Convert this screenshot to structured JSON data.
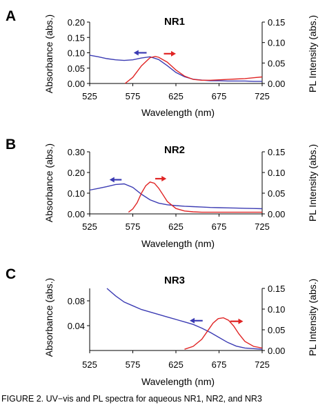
{
  "chart_data": [
    {
      "type": "line",
      "panel_label": "A",
      "title": "NR1",
      "xlabel": "Wavelength  (nm)",
      "ylabel": "Absorbance (abs.)",
      "y2label": "PL Intensity (abs.)",
      "xlim": [
        525,
        725
      ],
      "xticks": [
        "525",
        "575",
        "625",
        "675",
        "725"
      ],
      "ylim": [
        0,
        0.2
      ],
      "yticks": [
        "0.00",
        "0.05",
        "0.10",
        "0.15",
        "0.20"
      ],
      "y2lim": [
        0,
        0.15
      ],
      "y2ticks": [
        "0.00",
        "0.05",
        "0.10",
        "0.15"
      ],
      "grid": false,
      "series": [
        {
          "axis": "left",
          "color": "#3b3bb3",
          "x": [
            525,
            535,
            545,
            555,
            565,
            575,
            585,
            595,
            605,
            615,
            625,
            635,
            645,
            655,
            665,
            675,
            685,
            695,
            705,
            715,
            725
          ],
          "y": [
            0.092,
            0.087,
            0.081,
            0.077,
            0.075,
            0.077,
            0.083,
            0.087,
            0.078,
            0.058,
            0.036,
            0.022,
            0.014,
            0.011,
            0.009,
            0.009,
            0.008,
            0.008,
            0.008,
            0.007,
            0.007
          ]
        },
        {
          "axis": "right",
          "color": "#e02424",
          "x": [
            566,
            575,
            585,
            595,
            601,
            605,
            615,
            625,
            635,
            645,
            655,
            665,
            675,
            685,
            695,
            705,
            715,
            725
          ],
          "y": [
            0.0,
            0.015,
            0.043,
            0.063,
            0.066,
            0.064,
            0.052,
            0.033,
            0.018,
            0.01,
            0.008,
            0.008,
            0.009,
            0.01,
            0.011,
            0.012,
            0.014,
            0.016
          ]
        }
      ],
      "arrows": [
        {
          "color": "#3b3bb3",
          "direction": "left",
          "x": [
            576,
            591
          ],
          "y": 0.1
        },
        {
          "color": "#e02424",
          "direction": "right",
          "x": [
            611,
            625
          ],
          "y": 0.097
        }
      ]
    },
    {
      "type": "line",
      "panel_label": "B",
      "title": "NR2",
      "xlabel": "Wavelength (nm)",
      "ylabel": "Absorbance (abs.)",
      "y2label": "PL Intensity (abs.)",
      "xlim": [
        525,
        725
      ],
      "xticks": [
        "525",
        "575",
        "625",
        "675",
        "725"
      ],
      "ylim": [
        0,
        0.3
      ],
      "yticks": [
        "0.00",
        "0.10",
        "0.20",
        "0.30"
      ],
      "y2lim": [
        0,
        0.15
      ],
      "y2ticks": [
        "0.00",
        "0.05",
        "0.10",
        "0.15"
      ],
      "grid": false,
      "series": [
        {
          "axis": "left",
          "color": "#3b3bb3",
          "x": [
            525,
            535,
            545,
            555,
            565,
            575,
            585,
            595,
            605,
            615,
            625,
            635,
            645,
            655,
            665,
            675,
            685,
            695,
            705,
            715,
            725
          ],
          "y": [
            0.115,
            0.123,
            0.132,
            0.142,
            0.145,
            0.128,
            0.095,
            0.068,
            0.052,
            0.044,
            0.04,
            0.037,
            0.035,
            0.033,
            0.031,
            0.03,
            0.029,
            0.028,
            0.027,
            0.026,
            0.025
          ]
        },
        {
          "axis": "right",
          "color": "#e02424",
          "x": [
            570,
            575,
            580,
            585,
            590,
            595,
            600,
            605,
            610,
            615,
            625,
            635,
            645,
            655,
            665,
            675,
            685,
            695,
            705,
            715,
            725
          ],
          "y": [
            0.004,
            0.012,
            0.027,
            0.05,
            0.068,
            0.077,
            0.074,
            0.062,
            0.046,
            0.03,
            0.013,
            0.007,
            0.005,
            0.004,
            0.004,
            0.004,
            0.004,
            0.004,
            0.004,
            0.004,
            0.004
          ]
        }
      ],
      "arrows": [
        {
          "color": "#3b3bb3",
          "direction": "left",
          "x": [
            548,
            562
          ],
          "y": 0.165
        },
        {
          "color": "#e02424",
          "direction": "right",
          "x": [
            601,
            614
          ],
          "y": 0.17
        }
      ]
    },
    {
      "type": "line",
      "panel_label": "C",
      "title": "NR3",
      "xlabel": "Wavelength (nm)",
      "ylabel": "Absorbance (abs.)",
      "y2label": "PL Intensity (abs.)",
      "xlim": [
        525,
        725
      ],
      "xticks": [
        "525",
        "575",
        "625",
        "675",
        "725"
      ],
      "ylim": [
        0,
        0.1
      ],
      "yticks": [
        "0.04",
        "0.08"
      ],
      "y2lim": [
        0,
        0.15
      ],
      "y2ticks": [
        "0.00",
        "0.05",
        "0.10",
        "0.15"
      ],
      "grid": false,
      "series": [
        {
          "axis": "left",
          "color": "#3b3bb3",
          "x": [
            545,
            555,
            565,
            575,
            585,
            595,
            605,
            615,
            625,
            635,
            645,
            655,
            665,
            675,
            685,
            695,
            705,
            715,
            725
          ],
          "y": [
            0.1,
            0.088,
            0.078,
            0.072,
            0.066,
            0.062,
            0.058,
            0.054,
            0.05,
            0.046,
            0.042,
            0.036,
            0.029,
            0.021,
            0.013,
            0.007,
            0.004,
            0.003,
            0.002
          ]
        },
        {
          "axis": "right",
          "color": "#e02424",
          "x": [
            635,
            645,
            655,
            662,
            668,
            674,
            680,
            686,
            692,
            698,
            705,
            715,
            725
          ],
          "y": [
            0.003,
            0.01,
            0.027,
            0.048,
            0.066,
            0.077,
            0.079,
            0.073,
            0.059,
            0.04,
            0.022,
            0.01,
            0.006
          ]
        }
      ],
      "arrows": [
        {
          "color": "#3b3bb3",
          "direction": "left",
          "x": [
            641,
            656
          ],
          "y": 0.048
        },
        {
          "color": "#e02424",
          "direction": "right",
          "x": [
            688,
            703
          ],
          "y": 0.047
        }
      ]
    }
  ],
  "caption": "FIGURE 2. UV−vis and PL spectra for aqueous NR1, NR2, and NR3"
}
